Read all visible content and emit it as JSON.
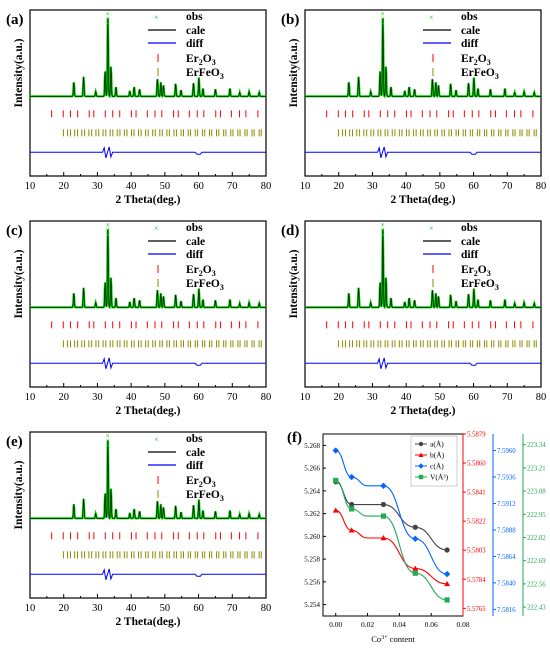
{
  "xrd_panels": [
    {
      "label": "(a)",
      "xlabel": "2 Theta(deg.)",
      "ylabel": "Intensity(a.u.)",
      "xticks": [
        "10",
        "20",
        "30",
        "40",
        "50",
        "60",
        "70",
        "80"
      ],
      "legend": {
        "obs": "obs",
        "cale": "cale",
        "diff": "diff",
        "er2o3_main": "Er",
        "er2o3_sub": "2",
        "er2o3_end": "O",
        "er2o3_sub2": "3",
        "erfeo3_main": "ErFeO",
        "erfeo3_sub": "3"
      }
    },
    {
      "label": "(b)",
      "xlabel": "2 Theta(deg.)",
      "ylabel": "Intensity(a.u.)",
      "xticks": [
        "10",
        "20",
        "30",
        "40",
        "50",
        "60",
        "70",
        "80"
      ],
      "legend": {
        "obs": "obs",
        "cale": "cale",
        "diff": "diff",
        "er2o3_main": "Er",
        "er2o3_sub": "2",
        "er2o3_end": "O",
        "er2o3_sub2": "3",
        "erfeo3_main": "ErFeO",
        "erfeo3_sub": "3"
      }
    },
    {
      "label": "(c)",
      "xlabel": "2 Theta(deg.)",
      "ylabel": "Intensity(a.u.)",
      "xticks": [
        "10",
        "20",
        "30",
        "40",
        "50",
        "60",
        "70",
        "80"
      ],
      "legend": {
        "obs": "obs",
        "cale": "cale",
        "diff": "diff",
        "er2o3_main": "Er",
        "er2o3_sub": "2",
        "er2o3_end": "O",
        "er2o3_sub2": "3",
        "erfeo3_main": "ErFeO",
        "erfeo3_sub": "3"
      }
    },
    {
      "label": "(d)",
      "xlabel": "2 Theta(deg.)",
      "ylabel": "Intensity(a.u.)",
      "xticks": [
        "10",
        "20",
        "30",
        "40",
        "50",
        "60",
        "70",
        "80"
      ],
      "legend": {
        "obs": "obs",
        "cale": "cale",
        "diff": "diff",
        "er2o3_main": "Er",
        "er2o3_sub": "2",
        "er2o3_end": "O",
        "er2o3_sub2": "3",
        "erfeo3_main": "ErFeO",
        "erfeo3_sub": "3"
      }
    },
    {
      "label": "(e)",
      "xlabel": "2 Theta(deg.)",
      "ylabel": "Intensity(a.u.)",
      "xticks": [
        "10",
        "20",
        "30",
        "40",
        "50",
        "60",
        "70",
        "80"
      ],
      "legend": {
        "obs": "obs",
        "cale": "cale",
        "diff": "diff",
        "er2o3_main": "Er",
        "er2o3_sub": "2",
        "er2o3_end": "O",
        "er2o3_sub2": "3",
        "erfeo3_main": "ErFeO",
        "erfeo3_sub": "3"
      }
    }
  ],
  "lattice_panel": {
    "label": "(f)",
    "xlabel_main": "Co",
    "xlabel_sup": "3+",
    "xlabel_end": " content",
    "legend": [
      "a(Å)",
      "b(Å)",
      "c(Å)",
      "V(Å³)"
    ]
  },
  "chart_data": [
    {
      "type": "line",
      "title": "",
      "xlabel": "2 Theta(deg.)",
      "ylabel": "Intensity(a.u.)",
      "xlim": [
        10,
        80
      ],
      "peaks_2theta": [
        23.0,
        25.9,
        29.5,
        32.3,
        33.1,
        34.0,
        35.5,
        39.6,
        40.9,
        42.5,
        47.8,
        48.8,
        49.6,
        53.2,
        54.8,
        58.5,
        60.1,
        61.3,
        65.0,
        69.3,
        72.2,
        75.0,
        78.0
      ],
      "peaks_rel_intensity": [
        0.18,
        0.25,
        0.06,
        0.32,
        1.0,
        0.38,
        0.12,
        0.07,
        0.12,
        0.09,
        0.22,
        0.18,
        0.14,
        0.16,
        0.08,
        0.17,
        0.24,
        0.1,
        0.09,
        0.1,
        0.05,
        0.06,
        0.05
      ],
      "series": [
        {
          "name": "obs",
          "color": "#00cc00"
        },
        {
          "name": "cale",
          "color": "#000000"
        },
        {
          "name": "diff",
          "color": "#0000ff"
        },
        {
          "name": "Er2O3",
          "color": "#ff0000"
        },
        {
          "name": "ErFeO3",
          "color": "#8b8b00"
        }
      ]
    },
    {
      "type": "line",
      "title": "",
      "xlabel": "Co3+ content",
      "x": [
        0.0,
        0.01,
        0.02,
        0.03,
        0.05,
        0.07
      ],
      "series": [
        {
          "name": "a(Å)",
          "color": "#444444",
          "values": [
            5.2648,
            5.2628,
            5.2628,
            5.2628,
            5.2608,
            5.2588
          ],
          "ylim": [
            5.253,
            5.269
          ],
          "yticks": [
            5.254,
            5.256,
            5.258,
            5.26,
            5.262,
            5.264,
            5.266,
            5.268
          ]
        },
        {
          "name": "b(Å)",
          "color": "#ff0000",
          "values": [
            5.5829,
            5.5816,
            5.5811,
            5.5811,
            5.5791,
            5.5781
          ],
          "ylim": [
            5.576,
            5.5879
          ],
          "yticks": [
            5.5765,
            5.5784,
            5.5803,
            5.5822,
            5.5841,
            5.586,
            5.5879
          ]
        },
        {
          "name": "c(Å)",
          "color": "#0066ff",
          "values": [
            7.596,
            7.5936,
            7.5928,
            7.5928,
            7.588,
            7.5848
          ],
          "ylim": [
            7.581,
            7.5975
          ],
          "yticks": [
            7.5816,
            7.584,
            7.5864,
            7.5888,
            7.5912,
            7.5936,
            7.596
          ]
        },
        {
          "name": "V(Å³)",
          "color": "#22aa55",
          "values": [
            223.14,
            222.98,
            222.94,
            222.94,
            222.62,
            222.47
          ],
          "ylim": [
            222.38,
            223.4
          ],
          "yticks": [
            222.43,
            222.56,
            222.69,
            222.82,
            222.95,
            223.08,
            223.21,
            223.34
          ]
        }
      ],
      "xticks": [
        "0.00",
        "0.02",
        "0.04",
        "0.06",
        "0.08"
      ],
      "xlim": [
        -0.008,
        0.08
      ]
    }
  ]
}
